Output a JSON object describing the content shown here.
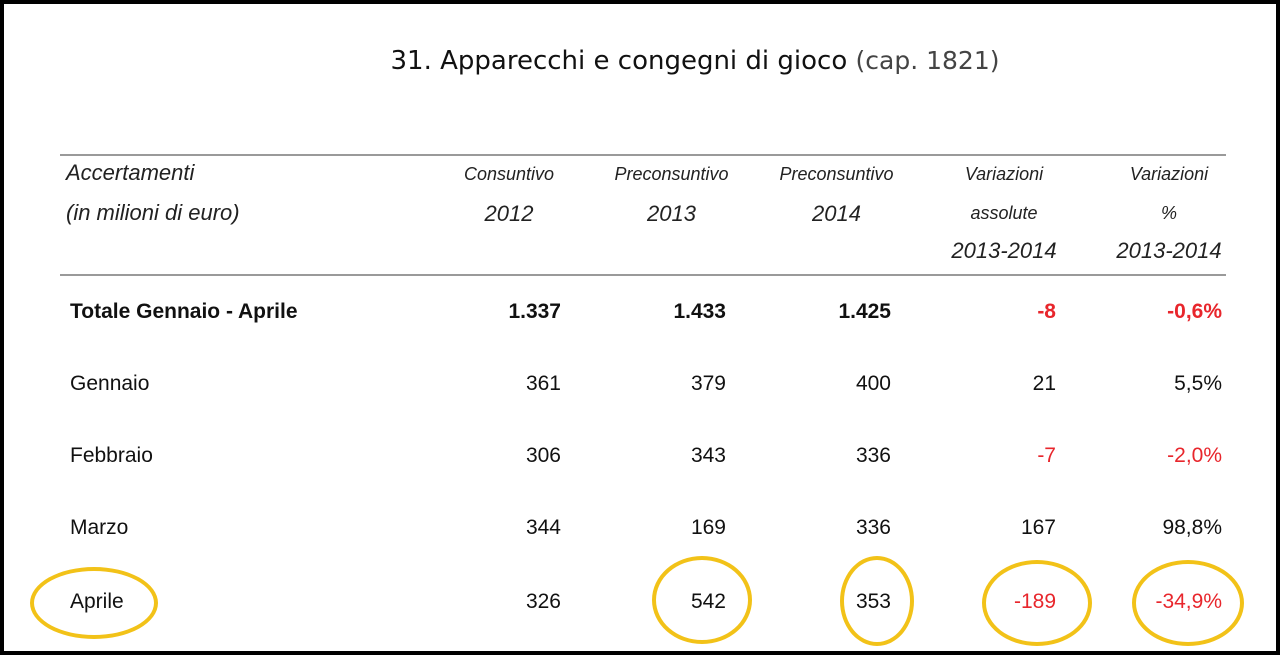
{
  "title": {
    "main": "31. Apparecchi e congegni di gioco",
    "cap": "(cap. 1821)"
  },
  "headers": {
    "label": {
      "line1": "Accertamenti",
      "line2": "(in milioni di euro)"
    },
    "c1": {
      "line1": "Consuntivo",
      "line2": "2012"
    },
    "c2": {
      "line1": "Preconsuntivo",
      "line2": "2013"
    },
    "c3": {
      "line1": "Preconsuntivo",
      "line2": "2014"
    },
    "c4": {
      "line1": "Variazioni",
      "line2": "assolute",
      "line3": "2013-2014"
    },
    "c5": {
      "line1": "Variazioni",
      "line2": "%",
      "line3": "2013-2014"
    }
  },
  "rows": [
    {
      "label": "Totale Gennaio - Aprile",
      "c1": "1.337",
      "c2": "1.433",
      "c3": "1.425",
      "c4": "-8",
      "c5": "-0,6%",
      "bold": true
    },
    {
      "label": "Gennaio",
      "c1": "361",
      "c2": "379",
      "c3": "400",
      "c4": "21",
      "c5": "5,5%"
    },
    {
      "label": "Febbraio",
      "c1": "306",
      "c2": "343",
      "c3": "336",
      "c4": "-7",
      "c5": "-2,0%"
    },
    {
      "label": "Marzo",
      "c1": "344",
      "c2": "169",
      "c3": "336",
      "c4": "167",
      "c5": "98,8%"
    },
    {
      "label": "Aprile",
      "c1": "326",
      "c2": "542",
      "c3": "353",
      "c4": "-189",
      "c5": "-34,9%"
    }
  ],
  "colors": {
    "negative": "#e8262c",
    "highlight_ring": "#f2c218",
    "rule": "#9a9a9a"
  }
}
